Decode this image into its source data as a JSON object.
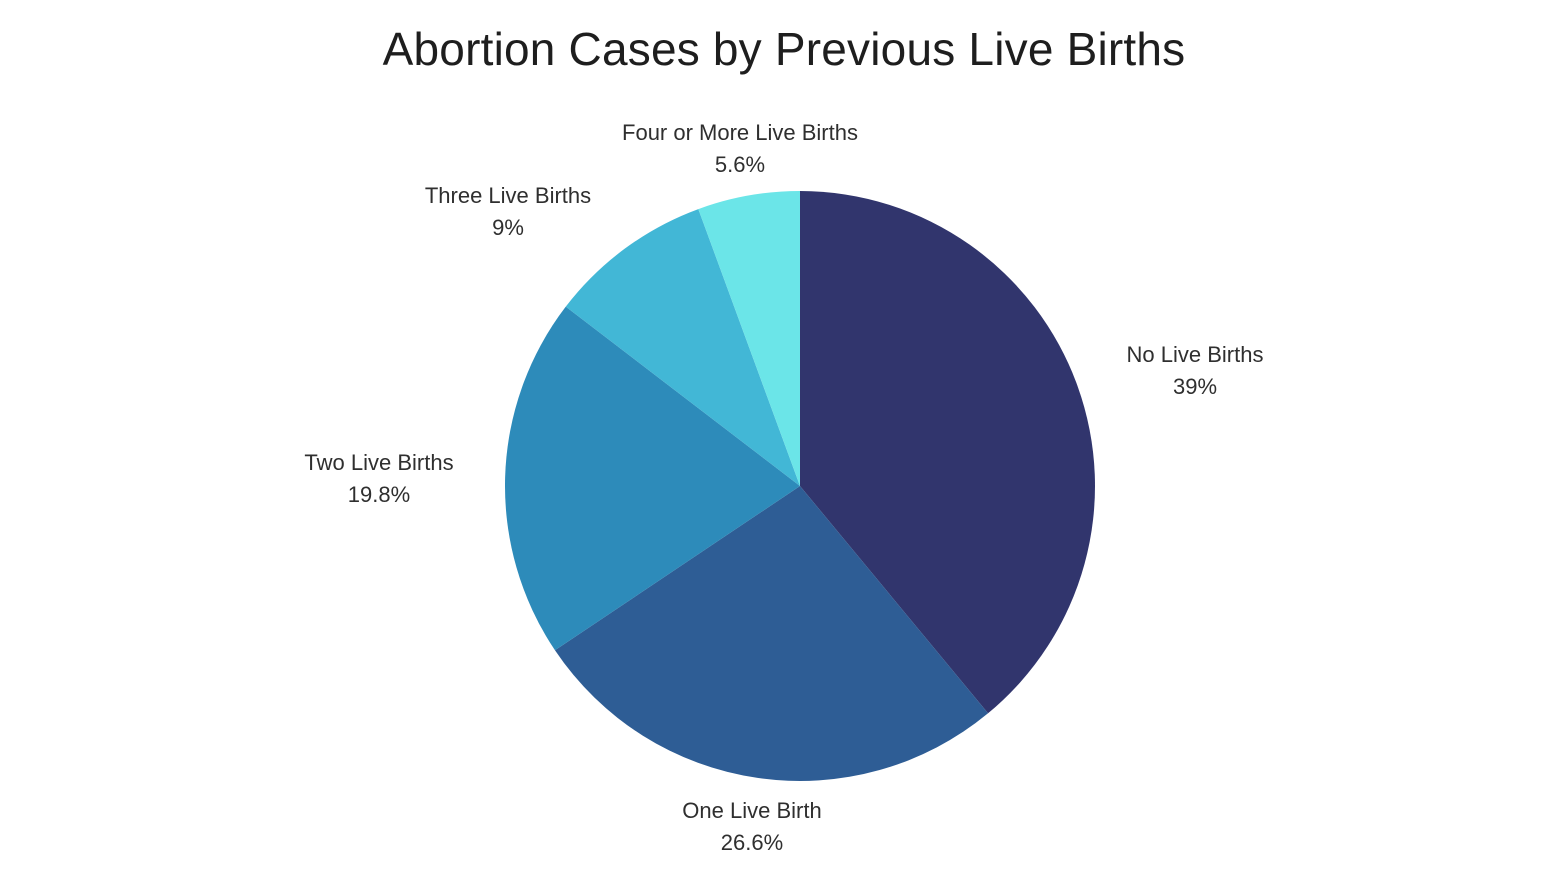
{
  "chart_data": {
    "type": "pie",
    "title": "Abortion Cases by Previous Live Births",
    "categories": [
      "No Live Births",
      "One Live Birth",
      "Two Live Births",
      "Three Live Births",
      "Four or More Live Births"
    ],
    "values": [
      39,
      26.6,
      19.8,
      9,
      5.6
    ],
    "value_labels": [
      "39%",
      "26.6%",
      "19.8%",
      "9%",
      "5.6%"
    ],
    "colors": [
      "#31356d",
      "#2e5d95",
      "#2d8bba",
      "#42b7d6",
      "#6be5e8"
    ],
    "start": "12 o'clock",
    "direction": "clockwise",
    "legend": "none"
  }
}
